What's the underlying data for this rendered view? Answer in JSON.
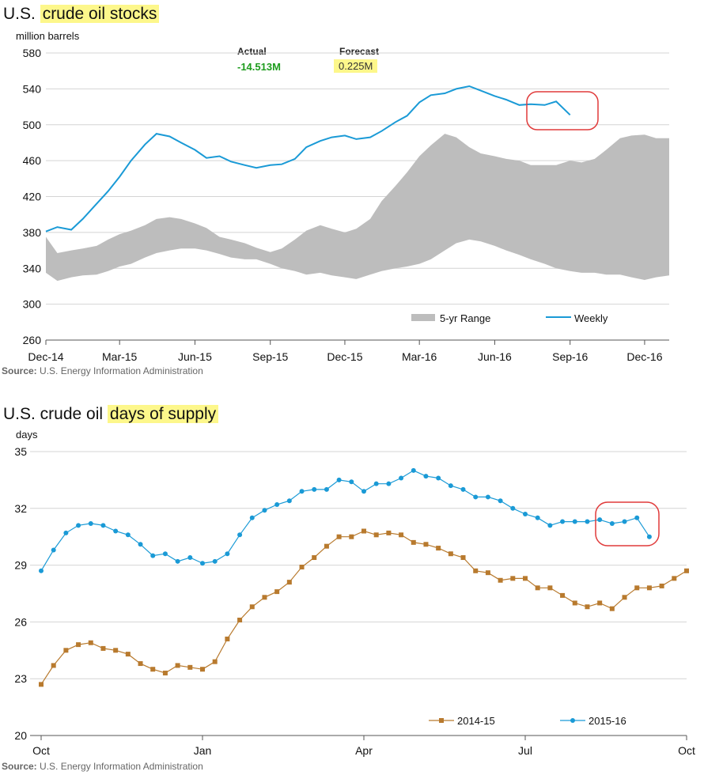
{
  "chart_data": [
    {
      "type": "area",
      "title_prefix": "U.S. ",
      "title_highlight": "crude oil stocks",
      "ylabel": "million barrels",
      "ylim": [
        260,
        580
      ],
      "yticks": [
        260,
        300,
        340,
        380,
        420,
        460,
        500,
        540,
        580
      ],
      "xlim": [
        "2014-12-01",
        "2016-12-31"
      ],
      "xticks": [
        {
          "label": "Dec-14",
          "date": "2014-12-01"
        },
        {
          "label": "Mar-15",
          "date": "2015-03-01"
        },
        {
          "label": "Jun-15",
          "date": "2015-06-01"
        },
        {
          "label": "Sep-15",
          "date": "2015-09-01"
        },
        {
          "label": "Dec-15",
          "date": "2015-12-01"
        },
        {
          "label": "Mar-16",
          "date": "2016-03-01"
        },
        {
          "label": "Jun-16",
          "date": "2016-06-01"
        },
        {
          "label": "Sep-16",
          "date": "2016-09-01"
        },
        {
          "label": "Dec-16",
          "date": "2016-12-01"
        }
      ],
      "legend": [
        {
          "label": "5-yr Range",
          "color": "#bdbdbd"
        },
        {
          "label": "Weekly",
          "color": "#1a9ad6"
        }
      ],
      "range_band": {
        "name": "5-yr Range",
        "x": [
          "2014-12-01",
          "2014-12-15",
          "2015-01-01",
          "2015-01-15",
          "2015-02-01",
          "2015-02-15",
          "2015-03-01",
          "2015-03-15",
          "2015-04-01",
          "2015-04-15",
          "2015-05-01",
          "2015-05-15",
          "2015-06-01",
          "2015-06-15",
          "2015-07-01",
          "2015-07-15",
          "2015-08-01",
          "2015-08-15",
          "2015-09-01",
          "2015-09-15",
          "2015-10-01",
          "2015-10-15",
          "2015-11-01",
          "2015-11-15",
          "2015-12-01",
          "2015-12-15",
          "2016-01-01",
          "2016-01-15",
          "2016-02-01",
          "2016-02-15",
          "2016-03-01",
          "2016-03-15",
          "2016-04-01",
          "2016-04-15",
          "2016-05-01",
          "2016-05-15",
          "2016-06-01",
          "2016-06-15",
          "2016-07-01",
          "2016-07-15",
          "2016-08-01",
          "2016-08-15",
          "2016-09-01",
          "2016-09-15",
          "2016-10-01",
          "2016-10-15",
          "2016-11-01",
          "2016-11-15",
          "2016-12-01",
          "2016-12-15",
          "2016-12-31"
        ],
        "low": [
          335,
          326,
          330,
          332,
          333,
          337,
          342,
          345,
          352,
          357,
          360,
          362,
          362,
          360,
          356,
          352,
          350,
          350,
          345,
          340,
          337,
          333,
          335,
          332,
          330,
          328,
          333,
          337,
          340,
          342,
          345,
          350,
          360,
          368,
          372,
          370,
          365,
          360,
          355,
          350,
          345,
          340,
          337,
          335,
          335,
          333,
          333,
          330,
          327,
          330,
          332
        ],
        "high": [
          375,
          357,
          360,
          362,
          365,
          372,
          378,
          382,
          388,
          395,
          397,
          395,
          390,
          385,
          375,
          372,
          368,
          363,
          358,
          362,
          372,
          382,
          388,
          384,
          380,
          384,
          395,
          415,
          432,
          447,
          465,
          477,
          490,
          486,
          475,
          468,
          465,
          462,
          460,
          455,
          455,
          455,
          460,
          458,
          462,
          472,
          485,
          488,
          489,
          485,
          485
        ]
      },
      "series": [
        {
          "name": "Weekly",
          "color": "#1a9ad6",
          "x": [
            "2014-12-01",
            "2014-12-15",
            "2015-01-01",
            "2015-01-15",
            "2015-02-01",
            "2015-02-15",
            "2015-03-01",
            "2015-03-15",
            "2015-04-01",
            "2015-04-15",
            "2015-05-01",
            "2015-05-15",
            "2015-06-01",
            "2015-06-15",
            "2015-07-01",
            "2015-07-15",
            "2015-08-01",
            "2015-08-15",
            "2015-09-01",
            "2015-09-15",
            "2015-10-01",
            "2015-10-15",
            "2015-11-01",
            "2015-11-15",
            "2015-12-01",
            "2015-12-15",
            "2016-01-01",
            "2016-01-15",
            "2016-02-01",
            "2016-02-15",
            "2016-03-01",
            "2016-03-15",
            "2016-04-01",
            "2016-04-15",
            "2016-05-01",
            "2016-05-15",
            "2016-06-01",
            "2016-06-15",
            "2016-07-01",
            "2016-07-15",
            "2016-08-01",
            "2016-08-15",
            "2016-09-01"
          ],
          "values": [
            381,
            386,
            383,
            395,
            412,
            426,
            442,
            460,
            478,
            490,
            487,
            480,
            472,
            463,
            465,
            459,
            455,
            452,
            455,
            456,
            462,
            475,
            482,
            486,
            488,
            484,
            486,
            493,
            503,
            510,
            525,
            533,
            535,
            540,
            543,
            538,
            532,
            528,
            522,
            523,
            522,
            526,
            511
          ]
        }
      ],
      "kpis": [
        {
          "label": "Actual",
          "value": "-14.513M",
          "color": "#1e9c1e",
          "highlight": false
        },
        {
          "label": "Forecast",
          "value": "0.225M",
          "color": "#333333",
          "highlight": true
        }
      ],
      "source_label": "Source:",
      "source_text": " U.S. Energy Information Administration"
    },
    {
      "type": "line",
      "title_prefix": "U.S. crude oil ",
      "title_highlight": "days of supply",
      "ylabel": "days",
      "ylim": [
        20,
        35
      ],
      "yticks": [
        20,
        23,
        26,
        29,
        32,
        35
      ],
      "x_count": 53,
      "xticks": [
        {
          "label": "Oct",
          "index": 0
        },
        {
          "label": "Jan",
          "index": 13
        },
        {
          "label": "Apr",
          "index": 26
        },
        {
          "label": "Jul",
          "index": 39
        },
        {
          "label": "Oct",
          "index": 52
        }
      ],
      "legend": [
        {
          "label": "2014-15",
          "color": "#b87a2e"
        },
        {
          "label": "2015-16",
          "color": "#1a9ad6"
        }
      ],
      "series": [
        {
          "name": "2014-15",
          "color": "#b87a2e",
          "marker": "square",
          "values": [
            22.7,
            23.7,
            24.5,
            24.8,
            24.9,
            24.6,
            24.5,
            24.3,
            23.8,
            23.5,
            23.3,
            23.7,
            23.6,
            23.5,
            23.9,
            25.1,
            26.1,
            26.8,
            27.3,
            27.6,
            28.1,
            28.9,
            29.4,
            30.0,
            30.5,
            30.5,
            30.8,
            30.6,
            30.7,
            30.6,
            30.2,
            30.1,
            29.9,
            29.6,
            29.4,
            28.7,
            28.6,
            28.2,
            28.3,
            28.3,
            27.8,
            27.8,
            27.4,
            27.0,
            26.8,
            27.0,
            26.7,
            27.3,
            27.8,
            27.8,
            27.9,
            28.3,
            28.7
          ]
        },
        {
          "name": "2015-16",
          "color": "#1a9ad6",
          "marker": "circle",
          "values": [
            28.7,
            29.8,
            30.7,
            31.1,
            31.2,
            31.1,
            30.8,
            30.6,
            30.1,
            29.5,
            29.6,
            29.2,
            29.4,
            29.1,
            29.2,
            29.6,
            30.6,
            31.5,
            31.9,
            32.2,
            32.4,
            32.9,
            33.0,
            33.0,
            33.5,
            33.4,
            32.9,
            33.3,
            33.3,
            33.6,
            34.0,
            33.7,
            33.6,
            33.2,
            33.0,
            32.6,
            32.6,
            32.4,
            32.0,
            31.7,
            31.5,
            31.1,
            31.3,
            31.3,
            31.3,
            31.4,
            31.2,
            31.3,
            31.5,
            30.5
          ]
        }
      ],
      "source_label": "Source:",
      "source_text": " U.S. Energy Information Administration"
    }
  ]
}
